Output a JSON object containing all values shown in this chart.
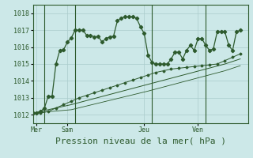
{
  "title": "",
  "xlabel": "Pression niveau de la mer( hPa )",
  "background_color": "#cce8e8",
  "grid_color": "#aacccc",
  "line_color": "#2d5a2d",
  "ylim": [
    1011.5,
    1018.5
  ],
  "yticks": [
    1012,
    1013,
    1014,
    1015,
    1016,
    1017,
    1018
  ],
  "xlim": [
    0,
    28
  ],
  "day_labels": [
    "Mer",
    "Sam",
    "Jeu",
    "Ven"
  ],
  "day_positions": [
    0.5,
    4.5,
    14.5,
    21.5
  ],
  "day_vlines": [
    1.5,
    5.5,
    15.5,
    22.5
  ],
  "line1_x": [
    0,
    0.5,
    1,
    1.5,
    2,
    2.5,
    3,
    3.5,
    4,
    4.5,
    5,
    5.5,
    6,
    6.5,
    7,
    7.5,
    8,
    8.5,
    9,
    9.5,
    10,
    10.5,
    11,
    11.5,
    12,
    12.5,
    13,
    13.5,
    14,
    14.5,
    15,
    15.5,
    16,
    16.5,
    17,
    17.5,
    18,
    18.5,
    19,
    19.5,
    20,
    20.5,
    21,
    21.5,
    22,
    22.5,
    23,
    23.5,
    24,
    24.5,
    25,
    25.5,
    26,
    26.5,
    27
  ],
  "line1_y": [
    1012.1,
    1012.1,
    1012.2,
    1012.4,
    1013.1,
    1013.1,
    1015.0,
    1015.8,
    1015.85,
    1016.3,
    1016.55,
    1017.0,
    1017.0,
    1017.0,
    1016.7,
    1016.7,
    1016.6,
    1016.63,
    1016.3,
    1016.5,
    1016.6,
    1016.65,
    1017.55,
    1017.7,
    1017.8,
    1017.78,
    1017.8,
    1017.7,
    1017.2,
    1016.8,
    1015.5,
    1015.1,
    1015.0,
    1015.0,
    1015.0,
    1015.0,
    1015.3,
    1015.7,
    1015.7,
    1015.3,
    1015.8,
    1016.1,
    1015.8,
    1016.5,
    1016.5,
    1016.1,
    1015.8,
    1015.9,
    1016.9,
    1016.9,
    1016.9,
    1016.1,
    1015.8,
    1016.9,
    1017.0
  ],
  "line2_x": [
    0,
    1,
    2,
    3,
    4,
    5,
    6,
    7,
    8,
    9,
    10,
    11,
    12,
    13,
    14,
    15,
    16,
    17,
    18,
    19,
    20,
    21,
    22,
    23,
    24,
    25,
    26,
    27
  ],
  "line2_y": [
    1012.1,
    1012.1,
    1012.2,
    1012.4,
    1012.6,
    1012.8,
    1013.0,
    1013.15,
    1013.3,
    1013.45,
    1013.6,
    1013.75,
    1013.9,
    1014.05,
    1014.2,
    1014.35,
    1014.5,
    1014.6,
    1014.7,
    1014.75,
    1014.8,
    1014.85,
    1014.9,
    1014.95,
    1015.0,
    1015.2,
    1015.4,
    1015.6
  ],
  "line3_x": [
    0,
    5,
    10,
    15,
    20,
    25,
    27
  ],
  "line3_y": [
    1012.1,
    1012.6,
    1013.2,
    1013.8,
    1014.4,
    1015.0,
    1015.3
  ],
  "line4_x": [
    0,
    5,
    10,
    15,
    20,
    25,
    27
  ],
  "line4_y": [
    1012.1,
    1012.3,
    1012.85,
    1013.4,
    1014.0,
    1014.6,
    1014.9
  ],
  "tick_fontsize": 6,
  "xlabel_fontsize": 8
}
